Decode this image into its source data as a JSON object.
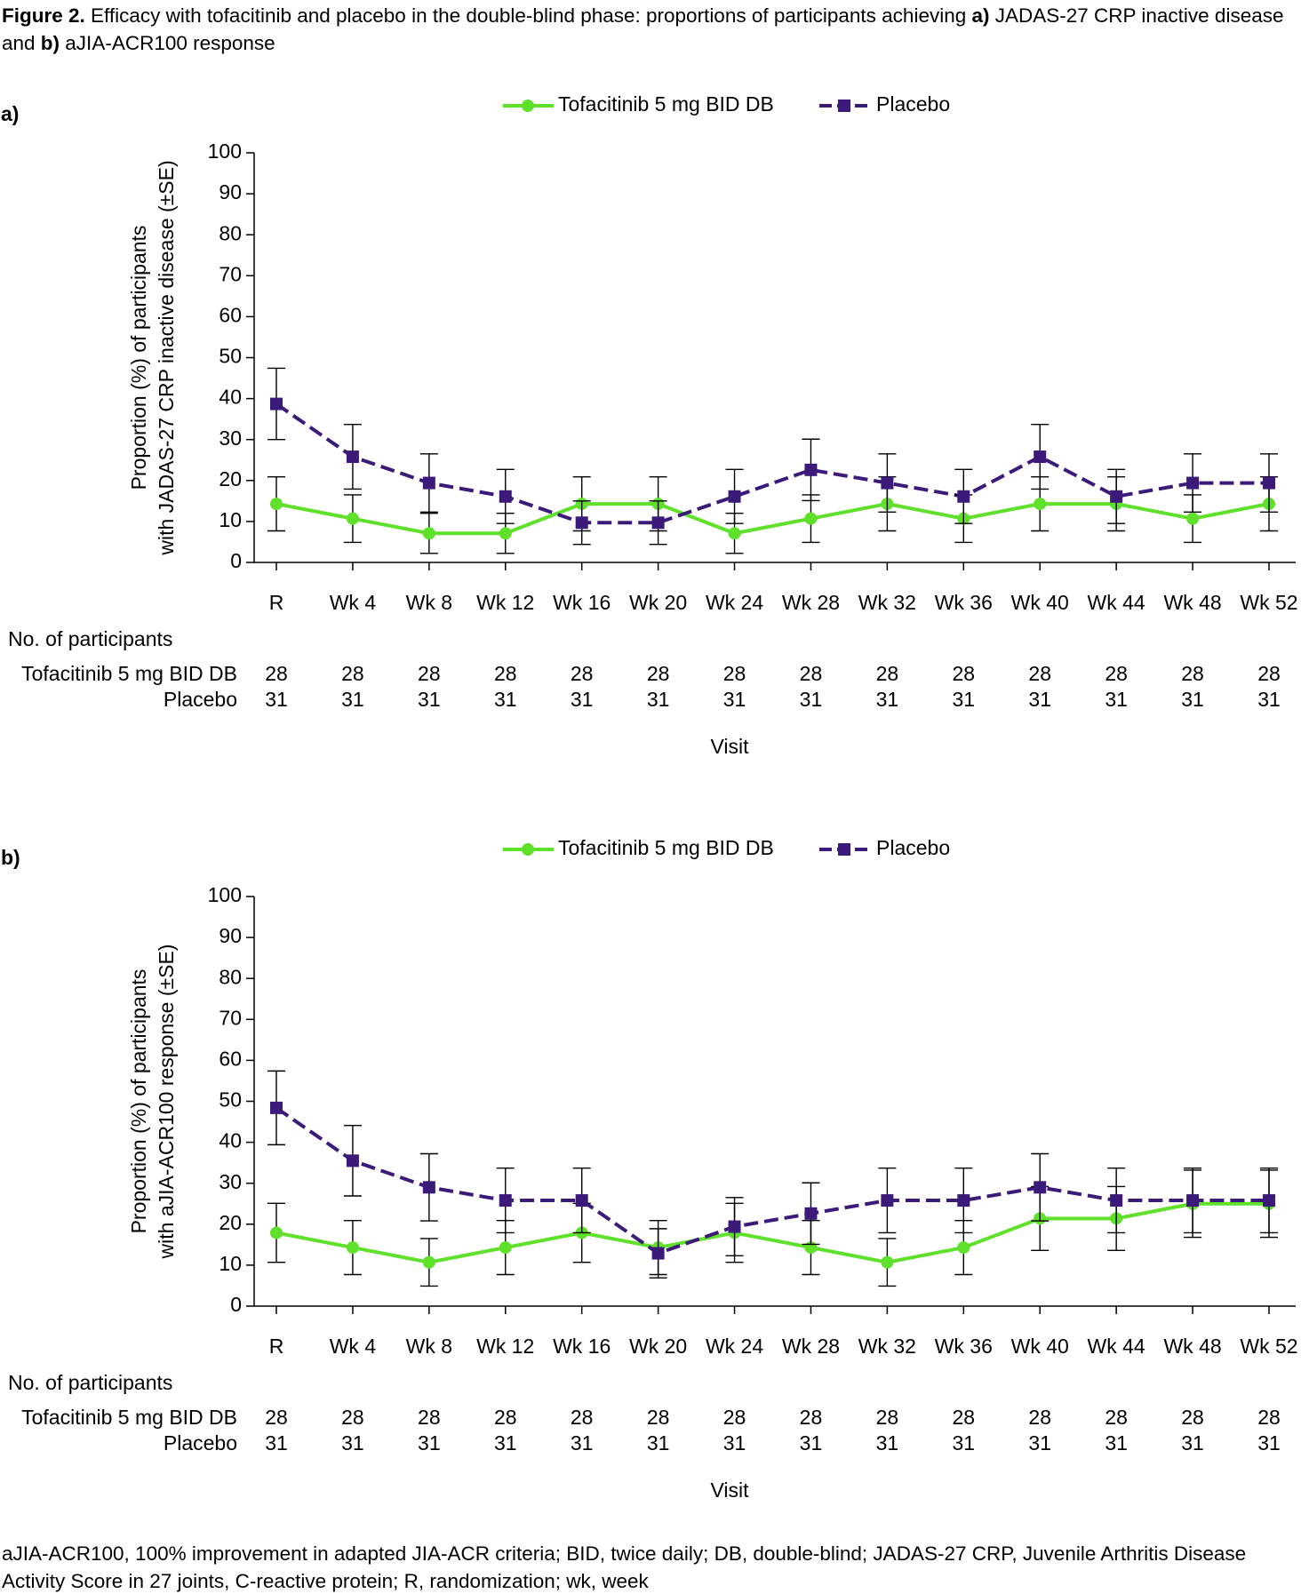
{
  "caption": [
    "Figure 2.",
    " Efficacy with tofacitinib and placebo in the double-blind phase: proportions of participants achieving ",
    "a)",
    " JADAS-27 CRP inactive disease and ",
    "b)",
    " aJIA-ACR100 response"
  ],
  "footnote": "aJIA-ACR100, 100% improvement in adapted JIA-ACR criteria; BID, twice daily; DB, double-blind; JADAS-27 CRP, Juvenile Arthritis Disease Activity Score in 27 joints, C-reactive protein; R, randomization; wk, week",
  "chart_data": [
    {
      "type": "line",
      "panel": "a)",
      "ylabel": [
        "Proportion (%) of participants",
        "with JADAS-27 CRP inactive disease (±SE)"
      ],
      "xlabel": "Visit",
      "categories": [
        "R",
        "Wk 4",
        "Wk 8",
        "Wk 12",
        "Wk 16",
        "Wk 20",
        "Wk 24",
        "Wk 28",
        "Wk 32",
        "Wk 36",
        "Wk 40",
        "Wk 44",
        "Wk 48",
        "Wk 52"
      ],
      "ylim": [
        0,
        100
      ],
      "yticks": [
        0,
        10,
        20,
        30,
        40,
        50,
        60,
        70,
        80,
        90,
        100
      ],
      "series": [
        {
          "name": "Tofacitinib 5 mg BID DB",
          "color": "#5fe02a",
          "marker": "circle",
          "dashed": false,
          "values": [
            14.3,
            10.7,
            7.1,
            7.1,
            14.3,
            14.3,
            7.1,
            10.7,
            14.3,
            10.7,
            14.3,
            14.3,
            10.7,
            14.3
          ],
          "errors": [
            6.6,
            5.8,
            4.9,
            4.9,
            6.6,
            6.6,
            4.9,
            5.8,
            6.6,
            5.8,
            6.6,
            6.6,
            5.8,
            6.6
          ]
        },
        {
          "name": "Placebo",
          "color": "#3b1a7a",
          "marker": "square",
          "dashed": true,
          "values": [
            38.7,
            25.8,
            19.4,
            16.1,
            9.7,
            9.7,
            16.1,
            22.6,
            19.4,
            16.1,
            25.8,
            16.1,
            19.4,
            19.4
          ],
          "errors": [
            8.7,
            7.9,
            7.1,
            6.6,
            5.3,
            5.3,
            6.6,
            7.5,
            7.1,
            6.6,
            7.9,
            6.6,
            7.1,
            7.1
          ]
        }
      ],
      "participants": {
        "title": "No. of participants",
        "rows": [
          {
            "name": "Tofacitinib 5 mg BID DB",
            "values": [
              28,
              28,
              28,
              28,
              28,
              28,
              28,
              28,
              28,
              28,
              28,
              28,
              28,
              28
            ]
          },
          {
            "name": "Placebo",
            "values": [
              31,
              31,
              31,
              31,
              31,
              31,
              31,
              31,
              31,
              31,
              31,
              31,
              31,
              31
            ]
          }
        ]
      }
    },
    {
      "type": "line",
      "panel": "b)",
      "ylabel": [
        "Proportion (%) of participants",
        "with aJIA-ACR100 response (±SE)"
      ],
      "xlabel": "Visit",
      "categories": [
        "R",
        "Wk 4",
        "Wk 8",
        "Wk 12",
        "Wk 16",
        "Wk 20",
        "Wk 24",
        "Wk 28",
        "Wk 32",
        "Wk 36",
        "Wk 40",
        "Wk 44",
        "Wk 48",
        "Wk 52"
      ],
      "ylim": [
        0,
        100
      ],
      "yticks": [
        0,
        10,
        20,
        30,
        40,
        50,
        60,
        70,
        80,
        90,
        100
      ],
      "series": [
        {
          "name": "Tofacitinib 5 mg BID DB",
          "color": "#5fe02a",
          "marker": "circle",
          "dashed": false,
          "values": [
            17.9,
            14.3,
            10.7,
            14.3,
            17.9,
            14.3,
            17.9,
            14.3,
            10.7,
            14.3,
            21.4,
            21.4,
            25.0,
            25.0
          ],
          "errors": [
            7.2,
            6.6,
            5.8,
            6.6,
            7.2,
            6.6,
            7.2,
            6.6,
            5.8,
            6.6,
            7.8,
            7.8,
            8.2,
            8.2
          ]
        },
        {
          "name": "Placebo",
          "color": "#3b1a7a",
          "marker": "square",
          "dashed": true,
          "values": [
            48.4,
            35.5,
            29.0,
            25.8,
            25.8,
            12.9,
            19.4,
            22.6,
            25.8,
            25.8,
            29.0,
            25.8,
            25.8,
            25.8
          ],
          "errors": [
            9.0,
            8.6,
            8.2,
            7.9,
            7.9,
            6.0,
            7.1,
            7.5,
            7.9,
            7.9,
            8.2,
            7.9,
            7.9,
            7.9
          ]
        }
      ],
      "participants": {
        "title": "No. of participants",
        "rows": [
          {
            "name": "Tofacitinib 5 mg BID DB",
            "values": [
              28,
              28,
              28,
              28,
              28,
              28,
              28,
              28,
              28,
              28,
              28,
              28,
              28,
              28
            ]
          },
          {
            "name": "Placebo",
            "values": [
              31,
              31,
              31,
              31,
              31,
              31,
              31,
              31,
              31,
              31,
              31,
              31,
              31,
              31
            ]
          }
        ]
      }
    }
  ]
}
